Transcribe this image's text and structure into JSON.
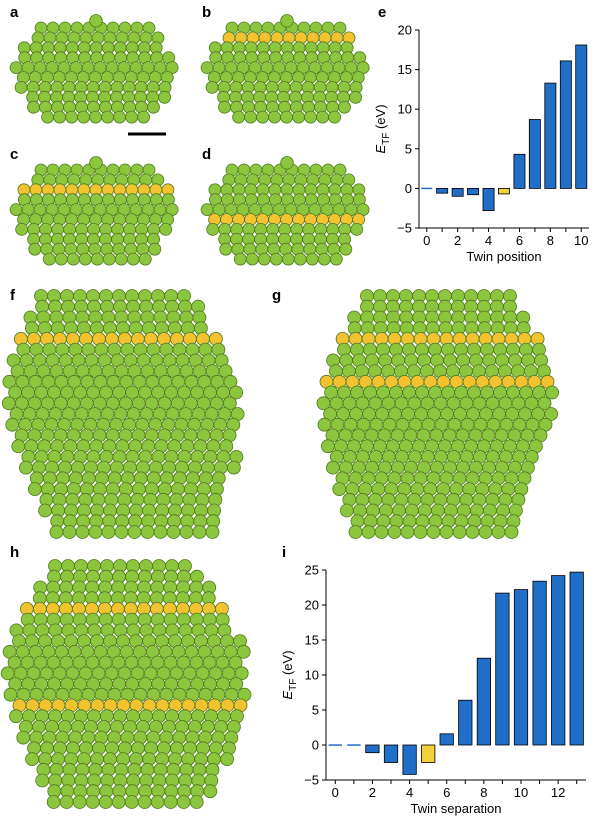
{
  "figure": {
    "panel_labels": {
      "a": "a",
      "b": "b",
      "c": "c",
      "d": "d",
      "e": "e",
      "f": "f",
      "g": "g",
      "h": "h",
      "i": "i"
    },
    "colors": {
      "atom_green": "#8cc63f",
      "atom_green_dark": "#4d7a1a",
      "atom_twin": "#f2c230",
      "bar_blue": "#1f6fc9",
      "bar_highlight": "#f2d13a"
    }
  },
  "chart_data": [
    {
      "type": "bar",
      "panel": "e",
      "x": [
        0,
        1,
        2,
        3,
        4,
        5,
        6,
        7,
        8,
        9,
        10
      ],
      "values": [
        0.0,
        -0.6,
        -1.0,
        -0.8,
        -2.8,
        -0.7,
        4.3,
        8.7,
        13.3,
        16.1,
        18.1
      ],
      "highlight_index": 5,
      "title": "",
      "xlabel": "Twin position",
      "ylabel_main": "E",
      "ylabel_sub": "TF",
      "ylabel_unit": " (eV)",
      "xlim": [
        -0.5,
        10.5
      ],
      "ylim": [
        -5,
        20
      ],
      "xticks": [
        0,
        2,
        4,
        6,
        8,
        10
      ],
      "yticks": [
        -5,
        0,
        5,
        10,
        15,
        20
      ]
    },
    {
      "type": "bar",
      "panel": "i",
      "x": [
        0,
        1,
        2,
        3,
        4,
        5,
        6,
        7,
        8,
        9,
        10,
        11,
        12,
        13
      ],
      "values": [
        0.0,
        0.0,
        -1.1,
        -2.5,
        -4.2,
        -2.5,
        1.6,
        6.4,
        12.4,
        21.7,
        22.2,
        23.4,
        24.2,
        24.7
      ],
      "highlight_index": 5,
      "title": "",
      "xlabel": "Twin separation",
      "ylabel_main": "E",
      "ylabel_sub": "TF",
      "ylabel_unit": " (eV)",
      "xlim": [
        -0.5,
        13.5
      ],
      "ylim": [
        -5,
        25
      ],
      "xticks": [
        0,
        2,
        4,
        6,
        8,
        10,
        12
      ],
      "yticks": [
        -5,
        0,
        5,
        10,
        15,
        20,
        25
      ]
    }
  ]
}
